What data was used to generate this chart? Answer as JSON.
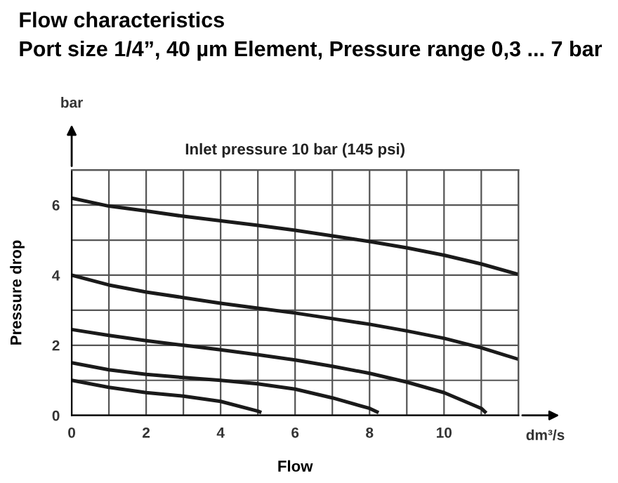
{
  "chart_data": {
    "type": "line",
    "title": "Flow characteristics",
    "subtitle": "Port size 1/4”, 40 µm Element, Pressure range 0,3 ... 7 bar",
    "xlabel": "Flow",
    "ylabel": "Pressure drop",
    "annotations": [
      "Inlet pressure 10 bar (145 psi)",
      "bar",
      "dm³/s"
    ],
    "xlim": [
      0,
      12
    ],
    "ylim": [
      0,
      7
    ],
    "xticks": [
      0,
      {
        "value": 1,
        "label": null
      },
      2,
      {
        "value": 3,
        "label": null
      },
      4,
      {
        "value": 5,
        "label": null
      },
      6,
      {
        "value": 7,
        "label": null
      },
      8,
      {
        "value": 9,
        "label": null
      },
      10,
      {
        "value": 11,
        "label": null
      },
      {
        "value": 12,
        "label": null
      }
    ],
    "yticks": [
      0,
      {
        "value": 1,
        "label": null
      },
      2,
      {
        "value": 3,
        "label": null
      },
      4,
      {
        "value": 5,
        "label": null
      },
      6,
      {
        "value": 7,
        "label": null
      }
    ],
    "grid": true,
    "legend": false,
    "marker": "none",
    "line_style": "solid",
    "series": [
      {
        "color": "#1a1a1a",
        "x": [
          0,
          1,
          2,
          3,
          4,
          5,
          6,
          7,
          8,
          9,
          10,
          11,
          12
        ],
        "values": [
          6.2,
          5.97,
          5.83,
          5.68,
          5.55,
          5.42,
          5.28,
          5.12,
          4.96,
          4.78,
          4.57,
          4.32,
          4.02
        ]
      },
      {
        "color": "#1a1a1a",
        "x": [
          0,
          1,
          2,
          3,
          4,
          5,
          6,
          7,
          8,
          9,
          10,
          11,
          12
        ],
        "values": [
          4.0,
          3.72,
          3.52,
          3.36,
          3.2,
          3.06,
          2.92,
          2.76,
          2.6,
          2.41,
          2.2,
          1.93,
          1.6
        ]
      },
      {
        "color": "#1a1a1a",
        "x": [
          0,
          1,
          2,
          3,
          4,
          5,
          6,
          7,
          8,
          9,
          10,
          11,
          11.1
        ],
        "values": [
          2.45,
          2.28,
          2.13,
          2.0,
          1.87,
          1.73,
          1.58,
          1.4,
          1.2,
          0.95,
          0.65,
          0.2,
          0.1
        ]
      },
      {
        "color": "#1a1a1a",
        "x": [
          0,
          1,
          2,
          3,
          4,
          5,
          6,
          7,
          8,
          8.2
        ],
        "values": [
          1.5,
          1.3,
          1.17,
          1.08,
          1.0,
          0.9,
          0.75,
          0.5,
          0.2,
          0.1
        ]
      },
      {
        "color": "#1a1a1a",
        "x": [
          0,
          1,
          2,
          3,
          4,
          5,
          5.05
        ],
        "values": [
          1.0,
          0.8,
          0.65,
          0.55,
          0.4,
          0.12,
          0.1
        ]
      }
    ]
  }
}
